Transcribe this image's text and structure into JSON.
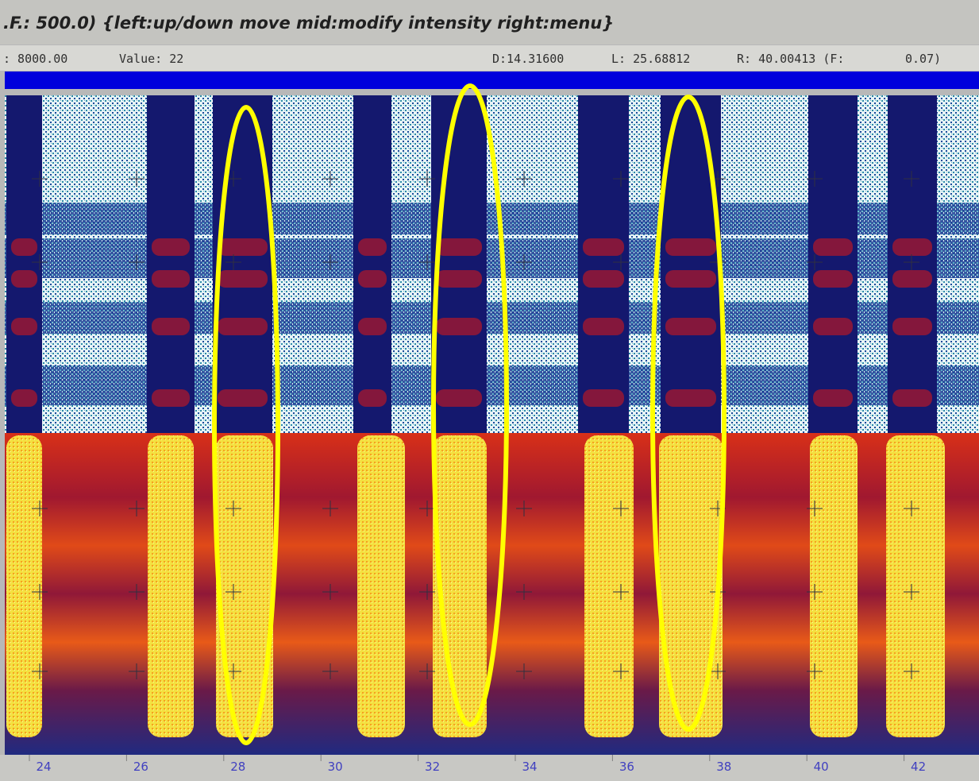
{
  "title_bar": {
    "text": ".F.: 500.0) {left:up/down move  mid:modify intensity  right:menu}"
  },
  "status_bar": {
    "fields": [
      ": 8000.00",
      "Value:  22",
      "D:14.31600",
      "L: 25.68812",
      "R: 40.00413 (F:",
      "0.07)"
    ]
  },
  "time_axis": {
    "labels": [
      "24",
      "26",
      "28",
      "30",
      "32",
      "34",
      "36",
      "38",
      "40",
      "42"
    ]
  }
}
